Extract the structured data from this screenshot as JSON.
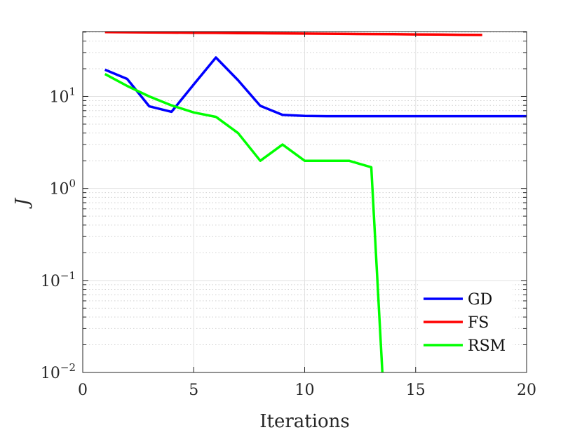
{
  "chart_data": {
    "type": "line",
    "title": "",
    "xlabel": "Iterations",
    "ylabel": "J",
    "xlim": [
      0,
      20
    ],
    "ylim": [
      0.01,
      50
    ],
    "yscale": "log",
    "grid": true,
    "minor_grid": true,
    "legend_position": "bottom-right",
    "x_ticks": [
      0,
      5,
      10,
      15,
      20
    ],
    "y_ticks": [
      {
        "value": 0.01,
        "base": "10",
        "exp": "−2"
      },
      {
        "value": 0.1,
        "base": "10",
        "exp": "−1"
      },
      {
        "value": 1,
        "base": "10",
        "exp": "0"
      },
      {
        "value": 10,
        "base": "10",
        "exp": "1"
      }
    ],
    "series": [
      {
        "name": "GD",
        "color": "#0000ff",
        "x": [
          1,
          2,
          3,
          4,
          5,
          6,
          7,
          8,
          9,
          10,
          11,
          12,
          13,
          14,
          15,
          16,
          17,
          18,
          19,
          20
        ],
        "y": [
          19.5,
          15.5,
          7.8,
          6.8,
          13.5,
          26.5,
          15.0,
          7.9,
          6.3,
          6.15,
          6.1,
          6.1,
          6.1,
          6.1,
          6.1,
          6.1,
          6.1,
          6.1,
          6.1,
          6.1
        ]
      },
      {
        "name": "FS",
        "color": "#ff0000",
        "x": [
          1,
          2,
          3,
          4,
          5,
          6,
          7,
          8,
          9,
          10,
          11,
          12,
          13,
          14,
          15,
          16,
          17,
          18
        ],
        "y": [
          50,
          49.8,
          49.6,
          49.4,
          49.2,
          49.0,
          48.8,
          48.6,
          48.4,
          48.2,
          48.0,
          47.8,
          47.6,
          47.4,
          47.2,
          47.0,
          46.8,
          46.6
        ]
      },
      {
        "name": "RSM",
        "color": "#00ff00",
        "x": [
          1,
          2,
          3,
          4,
          5,
          6,
          7,
          8,
          9,
          10,
          11,
          12,
          13,
          13.5
        ],
        "y": [
          17.5,
          13.0,
          10.0,
          8.0,
          6.7,
          6.0,
          4.0,
          2.0,
          3.0,
          2.0,
          2.0,
          2.0,
          1.7,
          0.01
        ]
      }
    ]
  }
}
